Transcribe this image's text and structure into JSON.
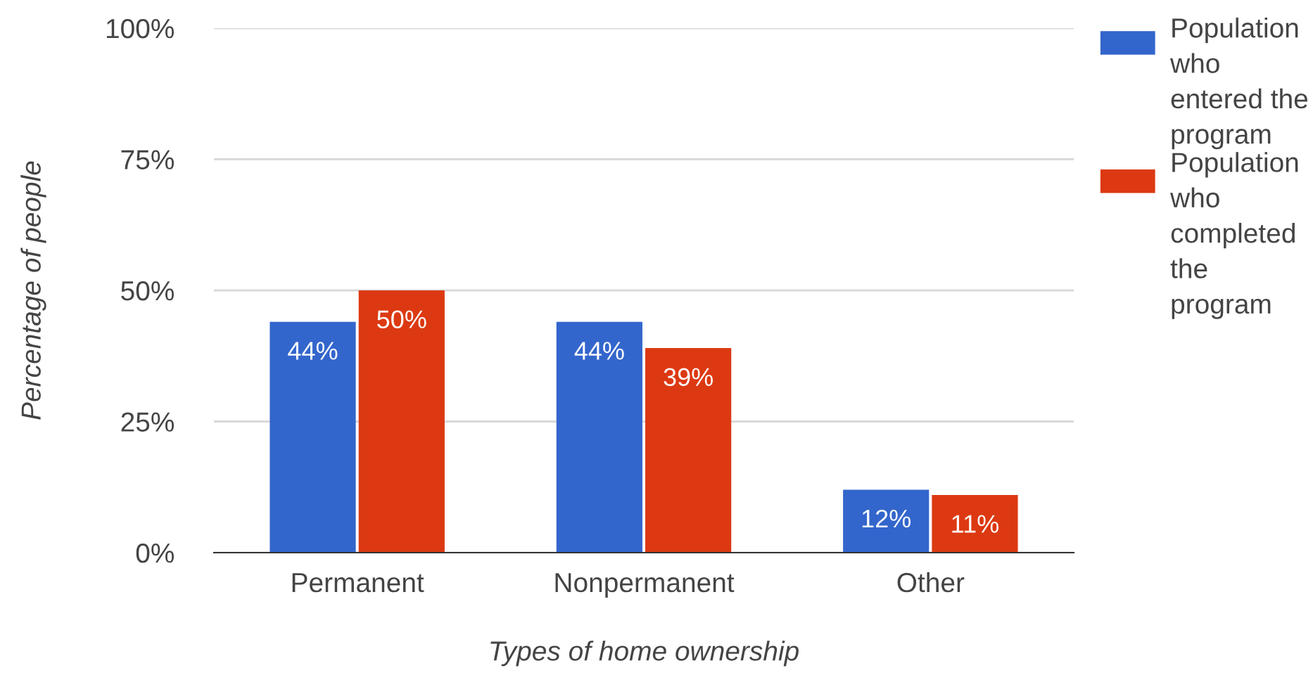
{
  "chart_data": {
    "type": "bar",
    "xlabel": "Types of home ownership",
    "ylabel": "Percentage of people",
    "categories": [
      "Permanent",
      "Nonpermanent",
      "Other"
    ],
    "series": [
      {
        "name": "Population who entered the program",
        "color": "#3366cc",
        "values": [
          44,
          44,
          12
        ],
        "value_labels": [
          "44%",
          "44%",
          "12%"
        ]
      },
      {
        "name": "Population who completed the program",
        "color": "#dc3912",
        "values": [
          50,
          39,
          11
        ],
        "value_labels": [
          "50%",
          "39%",
          "11%"
        ]
      }
    ],
    "ylim": [
      0,
      100
    ],
    "yticks": [
      {
        "value": 0,
        "label": "0%"
      },
      {
        "value": 25,
        "label": "25%"
      },
      {
        "value": 50,
        "label": "50%"
      },
      {
        "value": 75,
        "label": "75%"
      },
      {
        "value": 100,
        "label": "100%"
      }
    ],
    "grid": "y",
    "legend": "right"
  }
}
